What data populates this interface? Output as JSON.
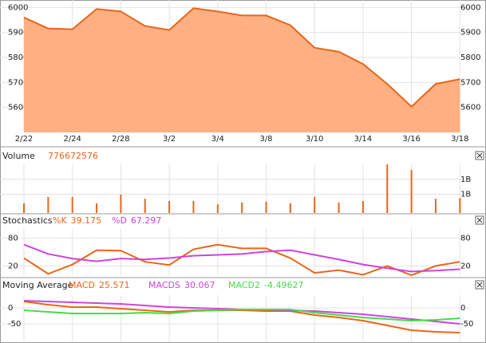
{
  "chart_data": [
    {
      "type": "area",
      "color": "#E8661A",
      "fill": "#FFB083",
      "categories": [
        "2/22",
        null,
        "2/24",
        null,
        "2/28",
        null,
        "3/2",
        null,
        "3/4",
        null,
        "3/8",
        null,
        "3/10",
        null,
        "3/14",
        null,
        "3/16",
        null,
        "3/18"
      ],
      "values": [
        5960,
        5916,
        5913,
        5994,
        5984,
        5926,
        5910,
        5997,
        5984,
        5968,
        5968,
        5929,
        5839,
        5823,
        5774,
        5694,
        5603,
        5694,
        5713
      ],
      "ylim": [
        5500,
        6030
      ],
      "yticks": [
        5600,
        5700,
        5800,
        5900,
        6000
      ],
      "tick_labels": "both",
      "grid": true
    },
    {
      "type": "bar",
      "title": "Volume",
      "color": "#E8661A",
      "readouts": [
        {
          "value": 776672576,
          "color": "#E8661A"
        }
      ],
      "values": [
        760000000,
        930000000,
        930000000,
        760000000,
        990000000,
        880000000,
        820000000,
        820000000,
        730000000,
        780000000,
        800000000,
        760000000,
        930000000,
        780000000,
        820000000,
        1800000000,
        1650000000,
        880000000,
        900000000
      ],
      "ylim": [
        500000000,
        1800000000
      ],
      "yticks": [
        {
          "value": 1000000000,
          "label": "1B"
        },
        {
          "value": 1400000000,
          "label": "1B"
        }
      ],
      "tick_labels": "right",
      "grid": true
    },
    {
      "type": "line",
      "title": "Stochastics",
      "readouts": [
        {
          "label": "%K",
          "value": 39.175,
          "color": "#E8661A"
        },
        {
          "label": "%D",
          "value": 67.297,
          "color": "#CC44DD"
        }
      ],
      "series": [
        {
          "color": "#E8661A",
          "values": [
            37,
            3,
            23,
            54,
            53,
            29,
            22,
            56,
            66,
            58,
            58,
            37,
            5,
            11,
            1,
            20,
            0,
            20,
            29
          ]
        },
        {
          "color": "#CC44DD",
          "values": [
            66,
            46,
            36,
            30,
            36,
            34,
            37,
            42,
            44,
            46,
            51,
            54,
            44,
            34,
            23,
            15,
            8,
            10,
            13
          ]
        }
      ],
      "ylim": [
        0,
        100
      ],
      "yticks": [
        20,
        80
      ],
      "tick_labels": "both",
      "grid": true
    },
    {
      "type": "line",
      "title": "Moving Average",
      "readouts": [
        {
          "label": "MACD",
          "value": 25.571,
          "color": "#E8661A"
        },
        {
          "label": "MACDS",
          "value": 30.067,
          "color": "#CC44DD"
        },
        {
          "label": "MACD2",
          "value": -4.49627,
          "color": "#44DD44"
        }
      ],
      "series": [
        {
          "color": "#E8661A",
          "values": [
            20,
            10,
            2.5,
            2.5,
            -2.5,
            -7.5,
            -12.5,
            -7.5,
            -7.5,
            -7.5,
            -10,
            -10,
            -22.5,
            -30,
            -40,
            -55,
            -70,
            -75,
            -77.5
          ]
        },
        {
          "color": "#CC44DD",
          "values": [
            22.5,
            20,
            17.5,
            15,
            12.5,
            7.5,
            2.5,
            0,
            -2.5,
            -5,
            -5,
            -7.5,
            -10,
            -15,
            -20,
            -27.5,
            -35,
            -42.5,
            -50
          ]
        },
        {
          "color": "#44DD44",
          "values": [
            -7.5,
            -12.5,
            -17.5,
            -17.5,
            -17.5,
            -15,
            -17.5,
            -10,
            -7.5,
            -5,
            -5,
            -5,
            -15,
            -22.5,
            -30,
            -35,
            -40,
            -37.5,
            -32.5
          ]
        }
      ],
      "ylim": [
        -105,
        40
      ],
      "yticks": [
        -50,
        0
      ],
      "tick_labels": "both",
      "grid": true
    }
  ]
}
